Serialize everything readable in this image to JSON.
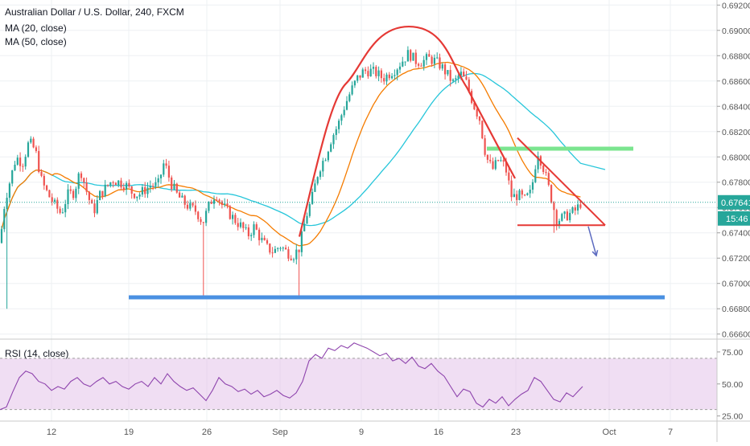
{
  "chart_data": [
    {
      "type": "candlestick",
      "title": "Australian Dollar / U.S. Dollar, 240, FXCM",
      "indicators": [
        {
          "label": "MA (20, close)",
          "color": "#f57c00"
        },
        {
          "label": "MA (50, close)",
          "color": "#26c6da"
        }
      ],
      "y_axis": {
        "position": "right",
        "ticks": [
          "0.69200",
          "0.69000",
          "0.68800",
          "0.68600",
          "0.68400",
          "0.68200",
          "0.68000",
          "0.67800",
          "0.67600",
          "0.67400",
          "0.67200",
          "0.67000",
          "0.66800",
          "0.66600"
        ],
        "tick_values": [
          0.692,
          0.69,
          0.688,
          0.686,
          0.684,
          0.682,
          0.68,
          0.678,
          0.676,
          0.674,
          0.672,
          0.67,
          0.668,
          0.666
        ],
        "ylim": [
          0.6656,
          0.6924
        ]
      },
      "last_price": {
        "label": "0.67641",
        "value": 0.67641,
        "color": "#26a69a"
      },
      "countdown": "15:46",
      "x_axis": {
        "ticks": [
          "12",
          "19",
          "26",
          "Sep",
          "9",
          "16",
          "23",
          "Oct",
          "7"
        ]
      },
      "price_path": [
        {
          "x": 0,
          "price": 0.6732
        },
        {
          "x": 6,
          "price": 0.6765
        },
        {
          "x": 12,
          "price": 0.678
        },
        {
          "x": 20,
          "price": 0.68
        },
        {
          "x": 28,
          "price": 0.6795
        },
        {
          "x": 36,
          "price": 0.6812
        },
        {
          "x": 44,
          "price": 0.6805
        },
        {
          "x": 52,
          "price": 0.678
        },
        {
          "x": 60,
          "price": 0.677
        },
        {
          "x": 68,
          "price": 0.6762
        },
        {
          "x": 76,
          "price": 0.6755
        },
        {
          "x": 84,
          "price": 0.677
        },
        {
          "x": 92,
          "price": 0.6772
        },
        {
          "x": 100,
          "price": 0.679
        },
        {
          "x": 108,
          "price": 0.6772
        },
        {
          "x": 116,
          "price": 0.6756
        },
        {
          "x": 124,
          "price": 0.677
        },
        {
          "x": 132,
          "price": 0.6776
        },
        {
          "x": 140,
          "price": 0.6782
        },
        {
          "x": 148,
          "price": 0.678
        },
        {
          "x": 156,
          "price": 0.6778
        },
        {
          "x": 164,
          "price": 0.6772
        },
        {
          "x": 172,
          "price": 0.677
        },
        {
          "x": 180,
          "price": 0.6774
        },
        {
          "x": 188,
          "price": 0.6778
        },
        {
          "x": 196,
          "price": 0.6777
        },
        {
          "x": 204,
          "price": 0.6796
        },
        {
          "x": 212,
          "price": 0.678
        },
        {
          "x": 220,
          "price": 0.677
        },
        {
          "x": 228,
          "price": 0.6764
        },
        {
          "x": 236,
          "price": 0.676
        },
        {
          "x": 244,
          "price": 0.6757
        },
        {
          "x": 252,
          "price": 0.6748
        },
        {
          "x": 260,
          "price": 0.6762
        },
        {
          "x": 268,
          "price": 0.6772
        },
        {
          "x": 276,
          "price": 0.6762
        },
        {
          "x": 284,
          "price": 0.6756
        },
        {
          "x": 292,
          "price": 0.675
        },
        {
          "x": 300,
          "price": 0.6745
        },
        {
          "x": 308,
          "price": 0.6738
        },
        {
          "x": 316,
          "price": 0.6745
        },
        {
          "x": 324,
          "price": 0.6735
        },
        {
          "x": 332,
          "price": 0.6728
        },
        {
          "x": 340,
          "price": 0.6725
        },
        {
          "x": 348,
          "price": 0.673
        },
        {
          "x": 356,
          "price": 0.6725
        },
        {
          "x": 364,
          "price": 0.6722
        },
        {
          "x": 372,
          "price": 0.6728
        },
        {
          "x": 380,
          "price": 0.6752
        },
        {
          "x": 388,
          "price": 0.6768
        },
        {
          "x": 396,
          "price": 0.679
        },
        {
          "x": 404,
          "price": 0.68
        },
        {
          "x": 412,
          "price": 0.6815
        },
        {
          "x": 420,
          "price": 0.6825
        },
        {
          "x": 428,
          "price": 0.684
        },
        {
          "x": 436,
          "price": 0.6852
        },
        {
          "x": 444,
          "price": 0.6862
        },
        {
          "x": 452,
          "price": 0.6868
        },
        {
          "x": 460,
          "price": 0.6868
        },
        {
          "x": 468,
          "price": 0.6866
        },
        {
          "x": 476,
          "price": 0.6862
        },
        {
          "x": 484,
          "price": 0.6866
        },
        {
          "x": 492,
          "price": 0.687
        },
        {
          "x": 500,
          "price": 0.6876
        },
        {
          "x": 508,
          "price": 0.6882
        },
        {
          "x": 516,
          "price": 0.6876
        },
        {
          "x": 524,
          "price": 0.6875
        },
        {
          "x": 532,
          "price": 0.6878
        },
        {
          "x": 540,
          "price": 0.6876
        },
        {
          "x": 548,
          "price": 0.6872
        },
        {
          "x": 556,
          "price": 0.6865
        },
        {
          "x": 564,
          "price": 0.6858
        },
        {
          "x": 572,
          "price": 0.6866
        },
        {
          "x": 580,
          "price": 0.6858
        },
        {
          "x": 588,
          "price": 0.6842
        },
        {
          "x": 596,
          "price": 0.683
        },
        {
          "x": 604,
          "price": 0.68
        },
        {
          "x": 612,
          "price": 0.679
        },
        {
          "x": 620,
          "price": 0.6798
        },
        {
          "x": 628,
          "price": 0.6792
        },
        {
          "x": 636,
          "price": 0.6768
        },
        {
          "x": 644,
          "price": 0.677
        },
        {
          "x": 652,
          "price": 0.6766
        },
        {
          "x": 660,
          "price": 0.6772
        },
        {
          "x": 668,
          "price": 0.6805
        },
        {
          "x": 676,
          "price": 0.679
        },
        {
          "x": 684,
          "price": 0.677
        },
        {
          "x": 692,
          "price": 0.675
        },
        {
          "x": 700,
          "price": 0.6752
        },
        {
          "x": 708,
          "price": 0.6755
        },
        {
          "x": 716,
          "price": 0.6758
        },
        {
          "x": 722,
          "price": 0.6764
        }
      ],
      "annotations": [
        {
          "kind": "support-line",
          "color": "#4a90e2",
          "from": {
            "x": 160,
            "price": 0.6689
          },
          "to": {
            "x": 826,
            "price": 0.6689
          }
        },
        {
          "kind": "resistance-zone",
          "color": "#7be58f",
          "from": {
            "x": 605,
            "price": 0.68065
          },
          "to": {
            "x": 787,
            "price": 0.68065
          }
        },
        {
          "kind": "rounded-top",
          "color": "#e53935",
          "points": [
            {
              "x": 372,
              "price": 0.6737
            },
            {
              "x": 430,
              "price": 0.6858
            },
            {
              "x": 508,
              "price": 0.6903
            },
            {
              "x": 580,
              "price": 0.6855
            },
            {
              "x": 640,
              "price": 0.6783
            }
          ]
        },
        {
          "kind": "descending-trendline",
          "color": "#e53935",
          "from": {
            "x": 643,
            "price": 0.6815
          },
          "to": {
            "x": 752,
            "price": 0.6746
          }
        },
        {
          "kind": "horizontal-line",
          "color": "#e53935",
          "from": {
            "x": 643,
            "price": 0.6746
          },
          "to": {
            "x": 752,
            "price": 0.6746
          }
        },
        {
          "kind": "arrow",
          "color": "#5c6bc0",
          "from": {
            "x": 731,
            "price": 0.6745
          },
          "to": {
            "x": 741,
            "price": 0.6722
          }
        }
      ]
    },
    {
      "type": "line",
      "title": "RSI (14, close)",
      "color": "#8e44ad",
      "band": {
        "from": 30,
        "to": 70,
        "color": "#e1bee7"
      },
      "y_axis": {
        "ticks": [
          "75.00",
          "50.00",
          "25.00"
        ],
        "tick_values": [
          75,
          50,
          25
        ],
        "ylim": [
          21,
          85
        ]
      },
      "series": [
        {
          "x": 0,
          "value": 30
        },
        {
          "x": 8,
          "value": 32
        },
        {
          "x": 16,
          "value": 44
        },
        {
          "x": 24,
          "value": 55
        },
        {
          "x": 32,
          "value": 60
        },
        {
          "x": 40,
          "value": 58
        },
        {
          "x": 48,
          "value": 52
        },
        {
          "x": 56,
          "value": 50
        },
        {
          "x": 64,
          "value": 45
        },
        {
          "x": 72,
          "value": 48
        },
        {
          "x": 80,
          "value": 46
        },
        {
          "x": 88,
          "value": 52
        },
        {
          "x": 96,
          "value": 55
        },
        {
          "x": 104,
          "value": 50
        },
        {
          "x": 112,
          "value": 48
        },
        {
          "x": 120,
          "value": 52
        },
        {
          "x": 128,
          "value": 55
        },
        {
          "x": 136,
          "value": 50
        },
        {
          "x": 144,
          "value": 52
        },
        {
          "x": 152,
          "value": 48
        },
        {
          "x": 160,
          "value": 46
        },
        {
          "x": 168,
          "value": 50
        },
        {
          "x": 176,
          "value": 52
        },
        {
          "x": 184,
          "value": 48
        },
        {
          "x": 192,
          "value": 55
        },
        {
          "x": 200,
          "value": 50
        },
        {
          "x": 208,
          "value": 58
        },
        {
          "x": 216,
          "value": 52
        },
        {
          "x": 224,
          "value": 48
        },
        {
          "x": 232,
          "value": 45
        },
        {
          "x": 240,
          "value": 47
        },
        {
          "x": 248,
          "value": 42
        },
        {
          "x": 256,
          "value": 37
        },
        {
          "x": 264,
          "value": 45
        },
        {
          "x": 272,
          "value": 55
        },
        {
          "x": 280,
          "value": 50
        },
        {
          "x": 288,
          "value": 48
        },
        {
          "x": 296,
          "value": 44
        },
        {
          "x": 304,
          "value": 46
        },
        {
          "x": 312,
          "value": 42
        },
        {
          "x": 320,
          "value": 45
        },
        {
          "x": 328,
          "value": 40
        },
        {
          "x": 336,
          "value": 42
        },
        {
          "x": 344,
          "value": 45
        },
        {
          "x": 352,
          "value": 41
        },
        {
          "x": 360,
          "value": 39
        },
        {
          "x": 368,
          "value": 43
        },
        {
          "x": 376,
          "value": 52
        },
        {
          "x": 384,
          "value": 68
        },
        {
          "x": 392,
          "value": 73
        },
        {
          "x": 400,
          "value": 70
        },
        {
          "x": 408,
          "value": 78
        },
        {
          "x": 416,
          "value": 76
        },
        {
          "x": 424,
          "value": 80
        },
        {
          "x": 432,
          "value": 78
        },
        {
          "x": 440,
          "value": 82
        },
        {
          "x": 448,
          "value": 80
        },
        {
          "x": 456,
          "value": 78
        },
        {
          "x": 464,
          "value": 75
        },
        {
          "x": 472,
          "value": 72
        },
        {
          "x": 480,
          "value": 74
        },
        {
          "x": 488,
          "value": 68
        },
        {
          "x": 496,
          "value": 70
        },
        {
          "x": 504,
          "value": 66
        },
        {
          "x": 512,
          "value": 71
        },
        {
          "x": 520,
          "value": 64
        },
        {
          "x": 528,
          "value": 62
        },
        {
          "x": 536,
          "value": 66
        },
        {
          "x": 544,
          "value": 60
        },
        {
          "x": 552,
          "value": 56
        },
        {
          "x": 560,
          "value": 48
        },
        {
          "x": 568,
          "value": 40
        },
        {
          "x": 576,
          "value": 46
        },
        {
          "x": 584,
          "value": 44
        },
        {
          "x": 592,
          "value": 35
        },
        {
          "x": 600,
          "value": 32
        },
        {
          "x": 608,
          "value": 38
        },
        {
          "x": 616,
          "value": 35
        },
        {
          "x": 624,
          "value": 40
        },
        {
          "x": 632,
          "value": 33
        },
        {
          "x": 640,
          "value": 38
        },
        {
          "x": 648,
          "value": 42
        },
        {
          "x": 656,
          "value": 45
        },
        {
          "x": 664,
          "value": 55
        },
        {
          "x": 672,
          "value": 52
        },
        {
          "x": 680,
          "value": 45
        },
        {
          "x": 688,
          "value": 38
        },
        {
          "x": 696,
          "value": 36
        },
        {
          "x": 704,
          "value": 43
        },
        {
          "x": 712,
          "value": 40
        },
        {
          "x": 718,
          "value": 44
        },
        {
          "x": 724,
          "value": 48
        }
      ]
    }
  ]
}
